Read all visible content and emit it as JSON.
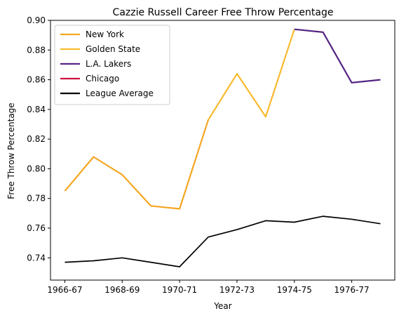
{
  "chart_data": {
    "type": "line",
    "title": "Cazzie Russell Career Free Throw Percentage",
    "xlabel": "Year",
    "ylabel": "Free Throw Percentage",
    "ylim": [
      0.725,
      0.9
    ],
    "yticks": [
      0.74,
      0.76,
      0.78,
      0.8,
      0.82,
      0.84,
      0.86,
      0.88,
      0.9
    ],
    "ytick_labels": [
      "0.74",
      "0.76",
      "0.78",
      "0.80",
      "0.82",
      "0.84",
      "0.86",
      "0.88",
      "0.90"
    ],
    "x": [
      "1966-67",
      "1967-68",
      "1968-69",
      "1969-70",
      "1970-71",
      "1971-72",
      "1972-73",
      "1973-74",
      "1974-75",
      "1975-76",
      "1976-77",
      "1977-78"
    ],
    "xtick_labels": [
      "1966-67",
      "1968-69",
      "1970-71",
      "1972-73",
      "1974-75",
      "1976-77"
    ],
    "legend_position": "top-left",
    "grid": false,
    "series": [
      {
        "name": "New York",
        "color": "#F5A623",
        "x": [
          "1966-67",
          "1967-68",
          "1968-69",
          "1969-70",
          "1970-71",
          "1971-72"
        ],
        "values": [
          0.785,
          0.808,
          0.796,
          0.775,
          0.773,
          0.833
        ]
      },
      {
        "name": "Golden State",
        "color": "#F8BA2E",
        "x": [
          "1971-72",
          "1972-73",
          "1973-74",
          "1974-75"
        ],
        "values": [
          0.833,
          0.864,
          0.835,
          0.894
        ]
      },
      {
        "name": "L.A. Lakers",
        "color": "#552583",
        "x": [
          "1974-75",
          "1975-76",
          "1976-77",
          "1977-78"
        ],
        "values": [
          0.894,
          0.892,
          0.858,
          0.86
        ]
      },
      {
        "name": "Chicago",
        "color": "#CE1141",
        "x": [],
        "values": []
      },
      {
        "name": "League Average",
        "color": "#000000",
        "x": [
          "1966-67",
          "1967-68",
          "1968-69",
          "1969-70",
          "1970-71",
          "1971-72",
          "1972-73",
          "1973-74",
          "1974-75",
          "1975-76",
          "1976-77",
          "1977-78"
        ],
        "values": [
          0.737,
          0.738,
          0.74,
          0.737,
          0.734,
          0.754,
          0.759,
          0.765,
          0.764,
          0.768,
          0.766,
          0.763
        ]
      }
    ]
  }
}
